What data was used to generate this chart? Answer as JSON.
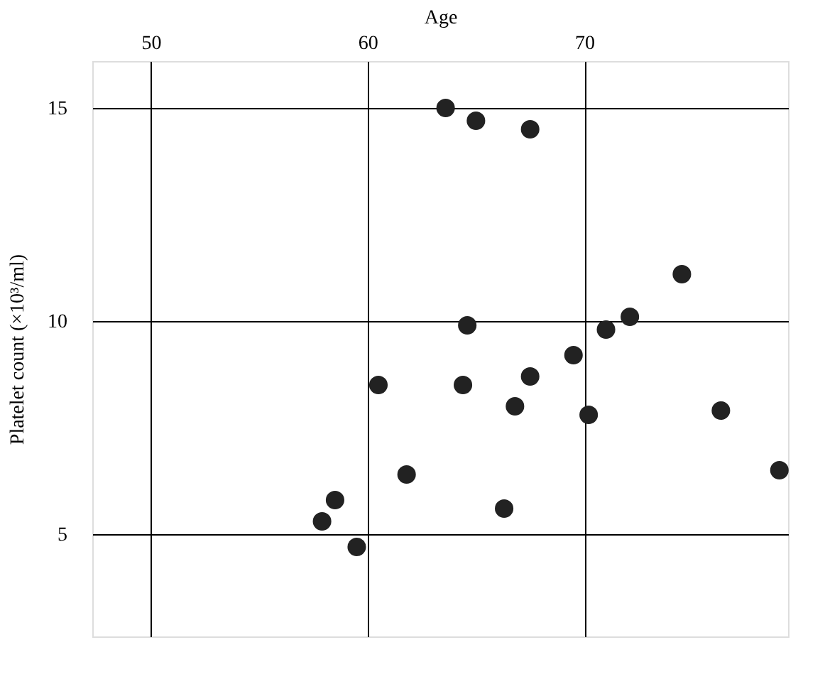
{
  "chart_data": {
    "type": "scatter",
    "xlabel": "Age",
    "ylabel": "Platelet count (×10³/ml)",
    "x": [
      57.9,
      58.5,
      59.5,
      60.5,
      61.8,
      63.6,
      64.4,
      64.6,
      65.0,
      66.3,
      66.8,
      67.5,
      67.5,
      69.5,
      70.2,
      71.0,
      72.1,
      74.5,
      76.3,
      79.0
    ],
    "values": [
      5.3,
      5.8,
      4.7,
      8.5,
      6.4,
      15.0,
      8.5,
      9.9,
      14.7,
      5.6,
      8.0,
      14.5,
      8.7,
      9.2,
      7.8,
      9.8,
      10.1,
      11.1,
      7.9,
      6.5
    ],
    "color": "#222222",
    "marker": "circle",
    "grid": true,
    "xlim": [
      47.3,
      79.4
    ],
    "ylim": [
      2.6,
      16.1
    ],
    "xticks": [
      50,
      60,
      70
    ],
    "yticks": [
      5,
      10,
      15
    ]
  }
}
